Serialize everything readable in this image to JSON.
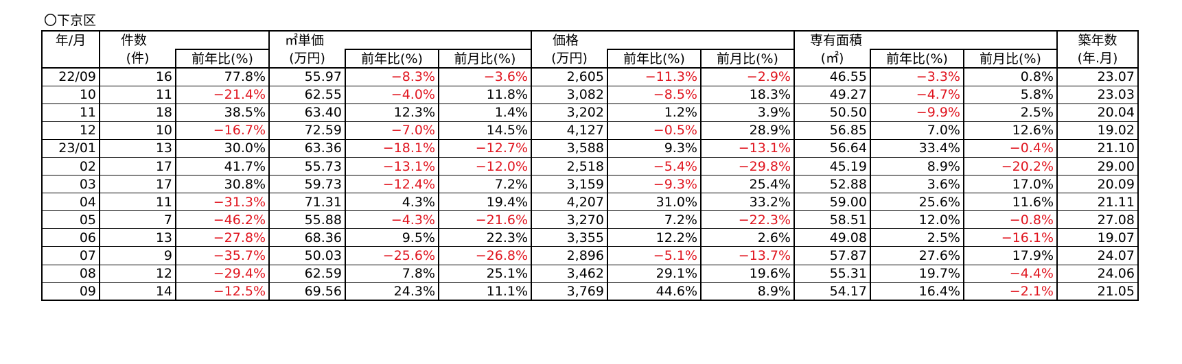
{
  "title": "〇下京区",
  "headers": {
    "month": "年/月",
    "count_group": "件数",
    "count_unit": "(件)",
    "unit_price_group": "㎡単価",
    "unit_price_unit": "(万円)",
    "price_group": "価格",
    "price_unit": "(万円)",
    "area_group": "専有面積",
    "area_unit": "(㎡)",
    "age_group": "築年数",
    "age_unit": "(年.月)",
    "yoy": "前年比(%)",
    "mom": "前月比(%)"
  },
  "colors": {
    "negative": "#e0141e",
    "text": "#000000"
  },
  "rows": [
    {
      "month": "22/09",
      "count": "16",
      "count_yoy": "77.8%",
      "up": "55.97",
      "up_yoy": "−8.3%",
      "up_mom": "−3.6%",
      "price": "2,605",
      "price_yoy": "−11.3%",
      "price_mom": "−2.9%",
      "area": "46.55",
      "area_yoy": "−3.3%",
      "area_mom": "0.8%",
      "age": "23.07"
    },
    {
      "month": "10",
      "count": "11",
      "count_yoy": "−21.4%",
      "up": "62.55",
      "up_yoy": "−4.0%",
      "up_mom": "11.8%",
      "price": "3,082",
      "price_yoy": "−8.5%",
      "price_mom": "18.3%",
      "area": "49.27",
      "area_yoy": "−4.7%",
      "area_mom": "5.8%",
      "age": "23.03"
    },
    {
      "month": "11",
      "count": "18",
      "count_yoy": "38.5%",
      "up": "63.40",
      "up_yoy": "12.3%",
      "up_mom": "1.4%",
      "price": "3,202",
      "price_yoy": "1.2%",
      "price_mom": "3.9%",
      "area": "50.50",
      "area_yoy": "−9.9%",
      "area_mom": "2.5%",
      "age": "20.04"
    },
    {
      "month": "12",
      "count": "10",
      "count_yoy": "−16.7%",
      "up": "72.59",
      "up_yoy": "−7.0%",
      "up_mom": "14.5%",
      "price": "4,127",
      "price_yoy": "−0.5%",
      "price_mom": "28.9%",
      "area": "56.85",
      "area_yoy": "7.0%",
      "area_mom": "12.6%",
      "age": "19.02"
    },
    {
      "month": "23/01",
      "count": "13",
      "count_yoy": "30.0%",
      "up": "63.36",
      "up_yoy": "−18.1%",
      "up_mom": "−12.7%",
      "price": "3,588",
      "price_yoy": "9.3%",
      "price_mom": "−13.1%",
      "area": "56.64",
      "area_yoy": "33.4%",
      "area_mom": "−0.4%",
      "age": "21.10"
    },
    {
      "month": "02",
      "count": "17",
      "count_yoy": "41.7%",
      "up": "55.73",
      "up_yoy": "−13.1%",
      "up_mom": "−12.0%",
      "price": "2,518",
      "price_yoy": "−5.4%",
      "price_mom": "−29.8%",
      "area": "45.19",
      "area_yoy": "8.9%",
      "area_mom": "−20.2%",
      "age": "29.00"
    },
    {
      "month": "03",
      "count": "17",
      "count_yoy": "30.8%",
      "up": "59.73",
      "up_yoy": "−12.4%",
      "up_mom": "7.2%",
      "price": "3,159",
      "price_yoy": "−9.3%",
      "price_mom": "25.4%",
      "area": "52.88",
      "area_yoy": "3.6%",
      "area_mom": "17.0%",
      "age": "20.09"
    },
    {
      "month": "04",
      "count": "11",
      "count_yoy": "−31.3%",
      "up": "71.31",
      "up_yoy": "4.3%",
      "up_mom": "19.4%",
      "price": "4,207",
      "price_yoy": "31.0%",
      "price_mom": "33.2%",
      "area": "59.00",
      "area_yoy": "25.6%",
      "area_mom": "11.6%",
      "age": "21.11"
    },
    {
      "month": "05",
      "count": "7",
      "count_yoy": "−46.2%",
      "up": "55.88",
      "up_yoy": "−4.3%",
      "up_mom": "−21.6%",
      "price": "3,270",
      "price_yoy": "7.2%",
      "price_mom": "−22.3%",
      "area": "58.51",
      "area_yoy": "12.0%",
      "area_mom": "−0.8%",
      "age": "27.08"
    },
    {
      "month": "06",
      "count": "13",
      "count_yoy": "−27.8%",
      "up": "68.36",
      "up_yoy": "9.5%",
      "up_mom": "22.3%",
      "price": "3,355",
      "price_yoy": "12.2%",
      "price_mom": "2.6%",
      "area": "49.08",
      "area_yoy": "2.5%",
      "area_mom": "−16.1%",
      "age": "19.07"
    },
    {
      "month": "07",
      "count": "9",
      "count_yoy": "−35.7%",
      "up": "50.03",
      "up_yoy": "−25.6%",
      "up_mom": "−26.8%",
      "price": "2,896",
      "price_yoy": "−5.1%",
      "price_mom": "−13.7%",
      "area": "57.87",
      "area_yoy": "27.6%",
      "area_mom": "17.9%",
      "age": "24.07"
    },
    {
      "month": "08",
      "count": "12",
      "count_yoy": "−29.4%",
      "up": "62.59",
      "up_yoy": "7.8%",
      "up_mom": "25.1%",
      "price": "3,462",
      "price_yoy": "29.1%",
      "price_mom": "19.6%",
      "area": "55.31",
      "area_yoy": "19.7%",
      "area_mom": "−4.4%",
      "age": "24.06"
    },
    {
      "month": "09",
      "count": "14",
      "count_yoy": "−12.5%",
      "up": "69.56",
      "up_yoy": "24.3%",
      "up_mom": "11.1%",
      "price": "3,769",
      "price_yoy": "44.6%",
      "price_mom": "8.9%",
      "area": "54.17",
      "area_yoy": "16.4%",
      "area_mom": "−2.1%",
      "age": "21.05"
    }
  ]
}
